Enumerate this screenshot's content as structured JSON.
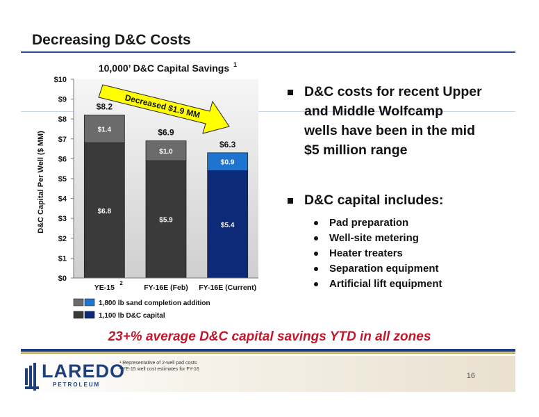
{
  "slide": {
    "title": "Decreasing D&C Costs",
    "page_number": "16"
  },
  "chart_data": {
    "type": "bar",
    "title": "10,000’ D&C Capital Savings",
    "title_superscript": "1",
    "ylabel": "D&C Capital Per Well ($ MM)",
    "ylim": [
      0,
      10
    ],
    "yticks": [
      "$0",
      "$1",
      "$2",
      "$3",
      "$4",
      "$5",
      "$6",
      "$7",
      "$8",
      "$9",
      "$10"
    ],
    "categories": [
      "YE-15",
      "FY-16E (Feb)",
      "FY-16E (Current)"
    ],
    "category_superscripts": [
      "2",
      "",
      ""
    ],
    "stacked": true,
    "series": [
      {
        "name": "1,100 lb D&C capital",
        "values": [
          6.8,
          5.9,
          5.4
        ],
        "labels": [
          "$6.8",
          "$5.9",
          "$5.4"
        ]
      },
      {
        "name": "1,800 lb sand completion addition",
        "values": [
          1.4,
          1.0,
          0.9
        ],
        "labels": [
          "$1.4",
          "$1.0",
          "$0.9"
        ]
      }
    ],
    "totals": [
      8.2,
      6.9,
      6.3
    ],
    "total_labels": [
      "$8.2",
      "$6.9",
      "$6.3"
    ],
    "annotation": "Decreased $1.9 MM",
    "legend_position": "bottom",
    "grid": false,
    "colors": {
      "gray_base": "#3a3a3a",
      "gray_top": "#6b6b6b",
      "blue_base": "#0d2a78",
      "blue_top": "#1f74d0",
      "plot_bg_top": "#f6f6f6",
      "plot_bg_bottom": "#cfcfcf",
      "arrow": "#ffff00"
    }
  },
  "bullets": [
    {
      "text": "D&C costs for recent Upper and Middle Wolfcamp wells have been in the mid $5 million range",
      "lines": [
        "D&C costs for recent Upper",
        "and Middle Wolfcamp",
        "wells have been in the mid",
        "$5 million range"
      ],
      "sub": []
    },
    {
      "text": "D&C capital includes:",
      "lines": [
        "D&C capital includes:"
      ],
      "sub": [
        "Pad preparation",
        "Well-site metering",
        "Heater treaters",
        "Separation equipment",
        "Artificial lift equipment"
      ]
    }
  ],
  "highlight": "23+% average D&C capital savings YTD in all zones",
  "footnotes": [
    "¹ Representative of 2-well pad costs",
    "² YE-15 well cost estimates for FY-16"
  ],
  "logo": {
    "name": "LAREDO",
    "subtitle": "PETROLEUM"
  }
}
